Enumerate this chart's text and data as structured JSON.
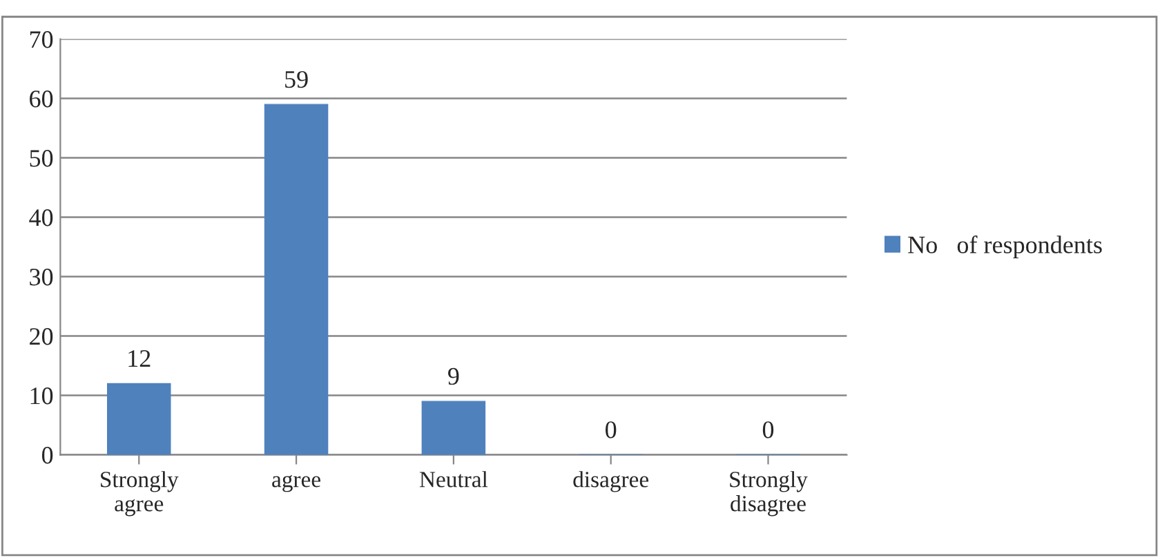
{
  "chart_data": {
    "type": "bar",
    "categories": [
      "Strongly\nagree",
      "agree",
      "Neutral",
      "disagree",
      "Strongly\ndisagree"
    ],
    "series": [
      {
        "name": "No   of respondents",
        "color": "#4f81bd",
        "values": [
          12,
          59,
          9,
          0,
          0
        ]
      }
    ],
    "ylim": [
      0,
      70
    ],
    "yticks": [
      0,
      10,
      20,
      30,
      40,
      50,
      60,
      70
    ],
    "grid": "y",
    "legend": "right",
    "data_labels": true
  }
}
